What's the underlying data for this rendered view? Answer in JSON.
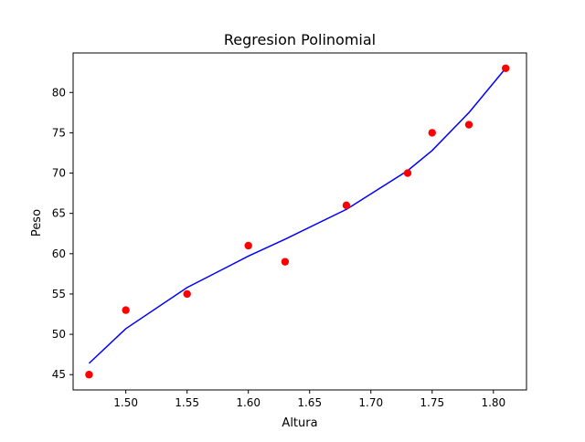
{
  "chart_data": {
    "type": "scatter",
    "title": "Regresion Polinomial",
    "xlabel": "Altura",
    "ylabel": "Peso",
    "xlim": [
      1.457,
      1.827
    ],
    "ylim": [
      43.1,
      84.9
    ],
    "xticks": [
      1.5,
      1.55,
      1.6,
      1.65,
      1.7,
      1.75,
      1.8
    ],
    "xtick_labels": [
      "1.50",
      "1.55",
      "1.60",
      "1.65",
      "1.70",
      "1.75",
      "1.80"
    ],
    "yticks": [
      45,
      50,
      55,
      60,
      65,
      70,
      75,
      80
    ],
    "ytick_labels": [
      "45",
      "50",
      "55",
      "60",
      "65",
      "70",
      "75",
      "80"
    ],
    "grid": false,
    "series": [
      {
        "kind": "scatter",
        "color": "#ff0000",
        "x": [
          1.47,
          1.5,
          1.55,
          1.6,
          1.63,
          1.68,
          1.73,
          1.75,
          1.78,
          1.81
        ],
        "y": [
          45,
          53,
          55,
          61,
          59,
          66,
          70,
          75,
          76,
          83
        ]
      },
      {
        "kind": "line",
        "color": "#0000ff",
        "x": [
          1.47,
          1.5,
          1.55,
          1.6,
          1.63,
          1.68,
          1.73,
          1.75,
          1.78,
          1.81
        ],
        "y": [
          46.4,
          50.7,
          55.8,
          59.7,
          61.8,
          65.5,
          70.3,
          72.8,
          77.5,
          83.0
        ]
      }
    ]
  }
}
